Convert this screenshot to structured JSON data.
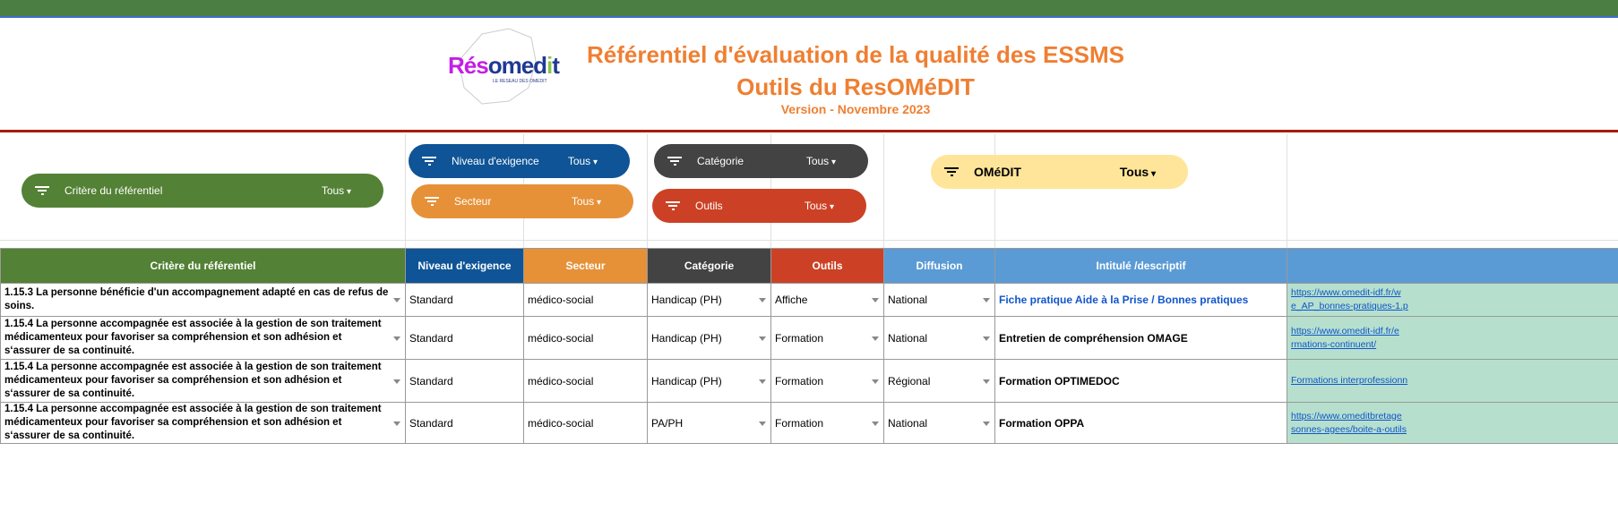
{
  "header": {
    "logo": "Résomedit",
    "logo_sub": "LE RESEAU DES OMEDIT",
    "title": "Référentiel d'évaluation de la qualité des ESSMS",
    "subtitle": "Outils du ResOMéDIT",
    "version": "Version - Novembre 2023"
  },
  "filters": [
    {
      "label": "Critère du référentiel",
      "value": "Tous",
      "color": "#538135"
    },
    {
      "label": "Niveau d'exigence",
      "value": "Tous",
      "color": "#0e5496"
    },
    {
      "label": "Secteur",
      "value": "Tous",
      "color": "#e69138"
    },
    {
      "label": "Catégorie",
      "value": "Tous",
      "color": "#434343"
    },
    {
      "label": "Outils",
      "value": "Tous",
      "color": "#cc4125"
    },
    {
      "label": "OMéDIT",
      "value": "Tous",
      "color": "#ffe599"
    }
  ],
  "columns": [
    "Critère du référentiel",
    "Niveau d'exigence",
    "Secteur",
    "Catégorie",
    "Outils",
    "Diffusion",
    "Intitulé /descriptif",
    ""
  ],
  "rows": [
    {
      "critere": "1.15.3 La personne bénéficie d'un accompagnement adapté en cas de refus de soins.",
      "niveau": "Standard",
      "secteur": "médico-social",
      "categorie": "Handicap (PH)",
      "outil": "Affiche",
      "diffusion": "National",
      "intitule": "Fiche pratique  Aide à la Prise / Bonnes pratiques",
      "lien": "https://www.omedit-idf.fr/w\ne_AP_bonnes-pratiques-1.p"
    },
    {
      "critere": "1.15.4 La personne accompagnée est associée à la gestion de son traitement médicamenteux pour favoriser sa compréhension et son adhésion et s‘assurer de sa continuité.",
      "niveau": "Standard",
      "secteur": "médico-social",
      "categorie": "Handicap (PH)",
      "outil": "Formation",
      "diffusion": "National",
      "intitule": "Entretien de compréhension OMAGE",
      "lien": "https://www.omedit-idf.fr/e\nrmations-continuent/"
    },
    {
      "critere": "1.15.4 La personne accompagnée est associée à la gestion de son traitement médicamenteux pour favoriser sa compréhension et son adhésion et s‘assurer de sa continuité.",
      "niveau": "Standard",
      "secteur": "médico-social",
      "categorie": "Handicap (PH)",
      "outil": "Formation",
      "diffusion": "Régional",
      "intitule": "Formation OPTIMEDOC",
      "lien": "Formations interprofessionn"
    },
    {
      "critere": "1.15.4 La personne accompagnée est associée à la gestion de son traitement médicamenteux pour favoriser sa compréhension et son adhésion et s‘assurer de sa continuité.",
      "niveau": "Standard",
      "secteur": "médico-social",
      "categorie": "PA/PH",
      "outil": "Formation",
      "diffusion": "National",
      "intitule": "Formation OPPA",
      "lien": "https://www.omeditbretage\nsonnes-agees/boite-a-outils"
    }
  ],
  "colors": {
    "diffusion": "#5b9bd5",
    "intitule": "#5b9bd5",
    "link_bg": "#b6e0cd",
    "title": "#ef7f32"
  }
}
